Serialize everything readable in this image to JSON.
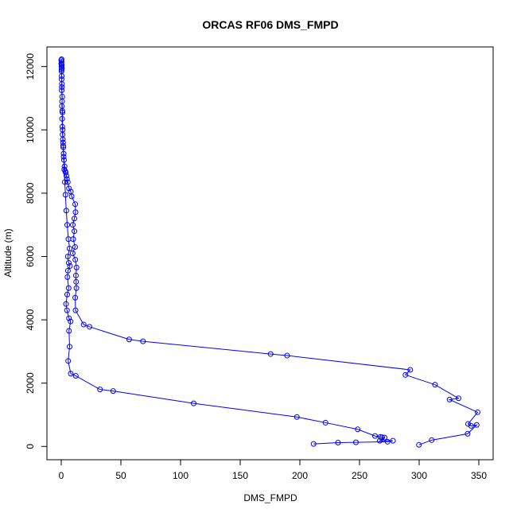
{
  "chart_data": {
    "type": "scatter",
    "title": "ORCAS RF06 DMS_FMPD",
    "xlabel": "DMS_FMPD",
    "ylabel": "Altitude (m)",
    "xlim": [
      -12,
      362
    ],
    "ylim": [
      -420,
      12620
    ],
    "x_ticks": [
      0,
      50,
      100,
      150,
      200,
      250,
      300,
      350
    ],
    "y_ticks": [
      0,
      2000,
      4000,
      6000,
      8000,
      10000,
      12000
    ],
    "x_tick_labels": [
      "0",
      "50",
      "100",
      "150",
      "200",
      "250",
      "300",
      "350"
    ],
    "y_tick_labels": [
      "0",
      "2000",
      "4000",
      "6000",
      "8000",
      "10000",
      "12000"
    ],
    "grid": false,
    "color": "#0000ff",
    "series": [
      {
        "x": [
          0.0,
          0.3,
          0.1,
          0.4,
          0.2,
          0.5,
          0.2,
          0.4,
          0.3,
          0.6,
          0.4,
          0.8,
          0.5,
          1.0,
          0.7,
          0.9,
          1.1,
          1.3,
          1.5,
          1.7,
          2.0,
          2.3,
          2.8,
          3.3,
          3.8,
          4.3,
          4.8,
          5.5,
          6.5,
          8.0,
          8.7,
          11.7,
          12.0,
          11.0,
          9.7,
          11.0,
          10.0,
          11.6,
          9.6,
          11.8,
          12.8,
          12.3,
          12.5,
          12.7,
          11.7,
          12.0,
          18.8,
          23.7,
          56.9,
          68.5,
          175.5,
          189.3,
          292.5,
          288.5,
          313.3,
          333.0,
          325.5,
          349.0,
          341.0,
          343.5,
          348.2,
          340.6,
          310.5,
          299.8
        ],
        "y": [
          12200,
          12150,
          12100,
          12050,
          12000,
          11950,
          11850,
          11700,
          11600,
          11450,
          11250,
          11050,
          10750,
          10550,
          10350,
          10100,
          9850,
          9700,
          9600,
          9450,
          9250,
          9050,
          8850,
          8700,
          8650,
          8550,
          8450,
          8350,
          8150,
          8050,
          7900,
          7650,
          7400,
          7200,
          7000,
          6800,
          6550,
          6300,
          6100,
          5900,
          5650,
          5400,
          5200,
          5000,
          4700,
          4300,
          3850,
          3780,
          3380,
          3320,
          2920,
          2870,
          2420,
          2260,
          1950,
          1520,
          1480,
          1080,
          710,
          650,
          680,
          400,
          200,
          50
        ]
      },
      {
        "x": [
          0.3,
          0.1,
          0.3,
          0.5,
          0.7,
          0.9,
          1.2,
          1.6,
          2.0,
          2.5,
          3.0,
          3.5,
          4.2,
          5.0,
          6.0,
          7.0,
          5.5,
          6.3,
          7.3,
          5.6,
          5.2,
          6.2,
          5.0,
          4.0,
          4.8,
          6.5,
          7.8,
          6.5,
          7.0,
          5.8,
          8.0,
          12.2,
          32.5,
          43.5,
          111.0,
          197.5,
          221.5,
          248.5,
          263.0,
          267.5,
          269.0,
          271.0,
          267.0,
          278.0,
          273.5,
          247.0,
          232.0,
          211.5
        ],
        "y": [
          12230,
          12080,
          11900,
          11350,
          10900,
          10600,
          10000,
          9500,
          9150,
          8750,
          8350,
          7950,
          7450,
          7000,
          6550,
          6250,
          6000,
          5800,
          5700,
          5550,
          5350,
          5000,
          4800,
          4500,
          4300,
          4050,
          3950,
          3650,
          3150,
          2700,
          2300,
          2230,
          1800,
          1750,
          1360,
          930,
          750,
          540,
          330,
          300,
          290,
          280,
          180,
          180,
          150,
          130,
          120,
          80
        ]
      }
    ]
  }
}
